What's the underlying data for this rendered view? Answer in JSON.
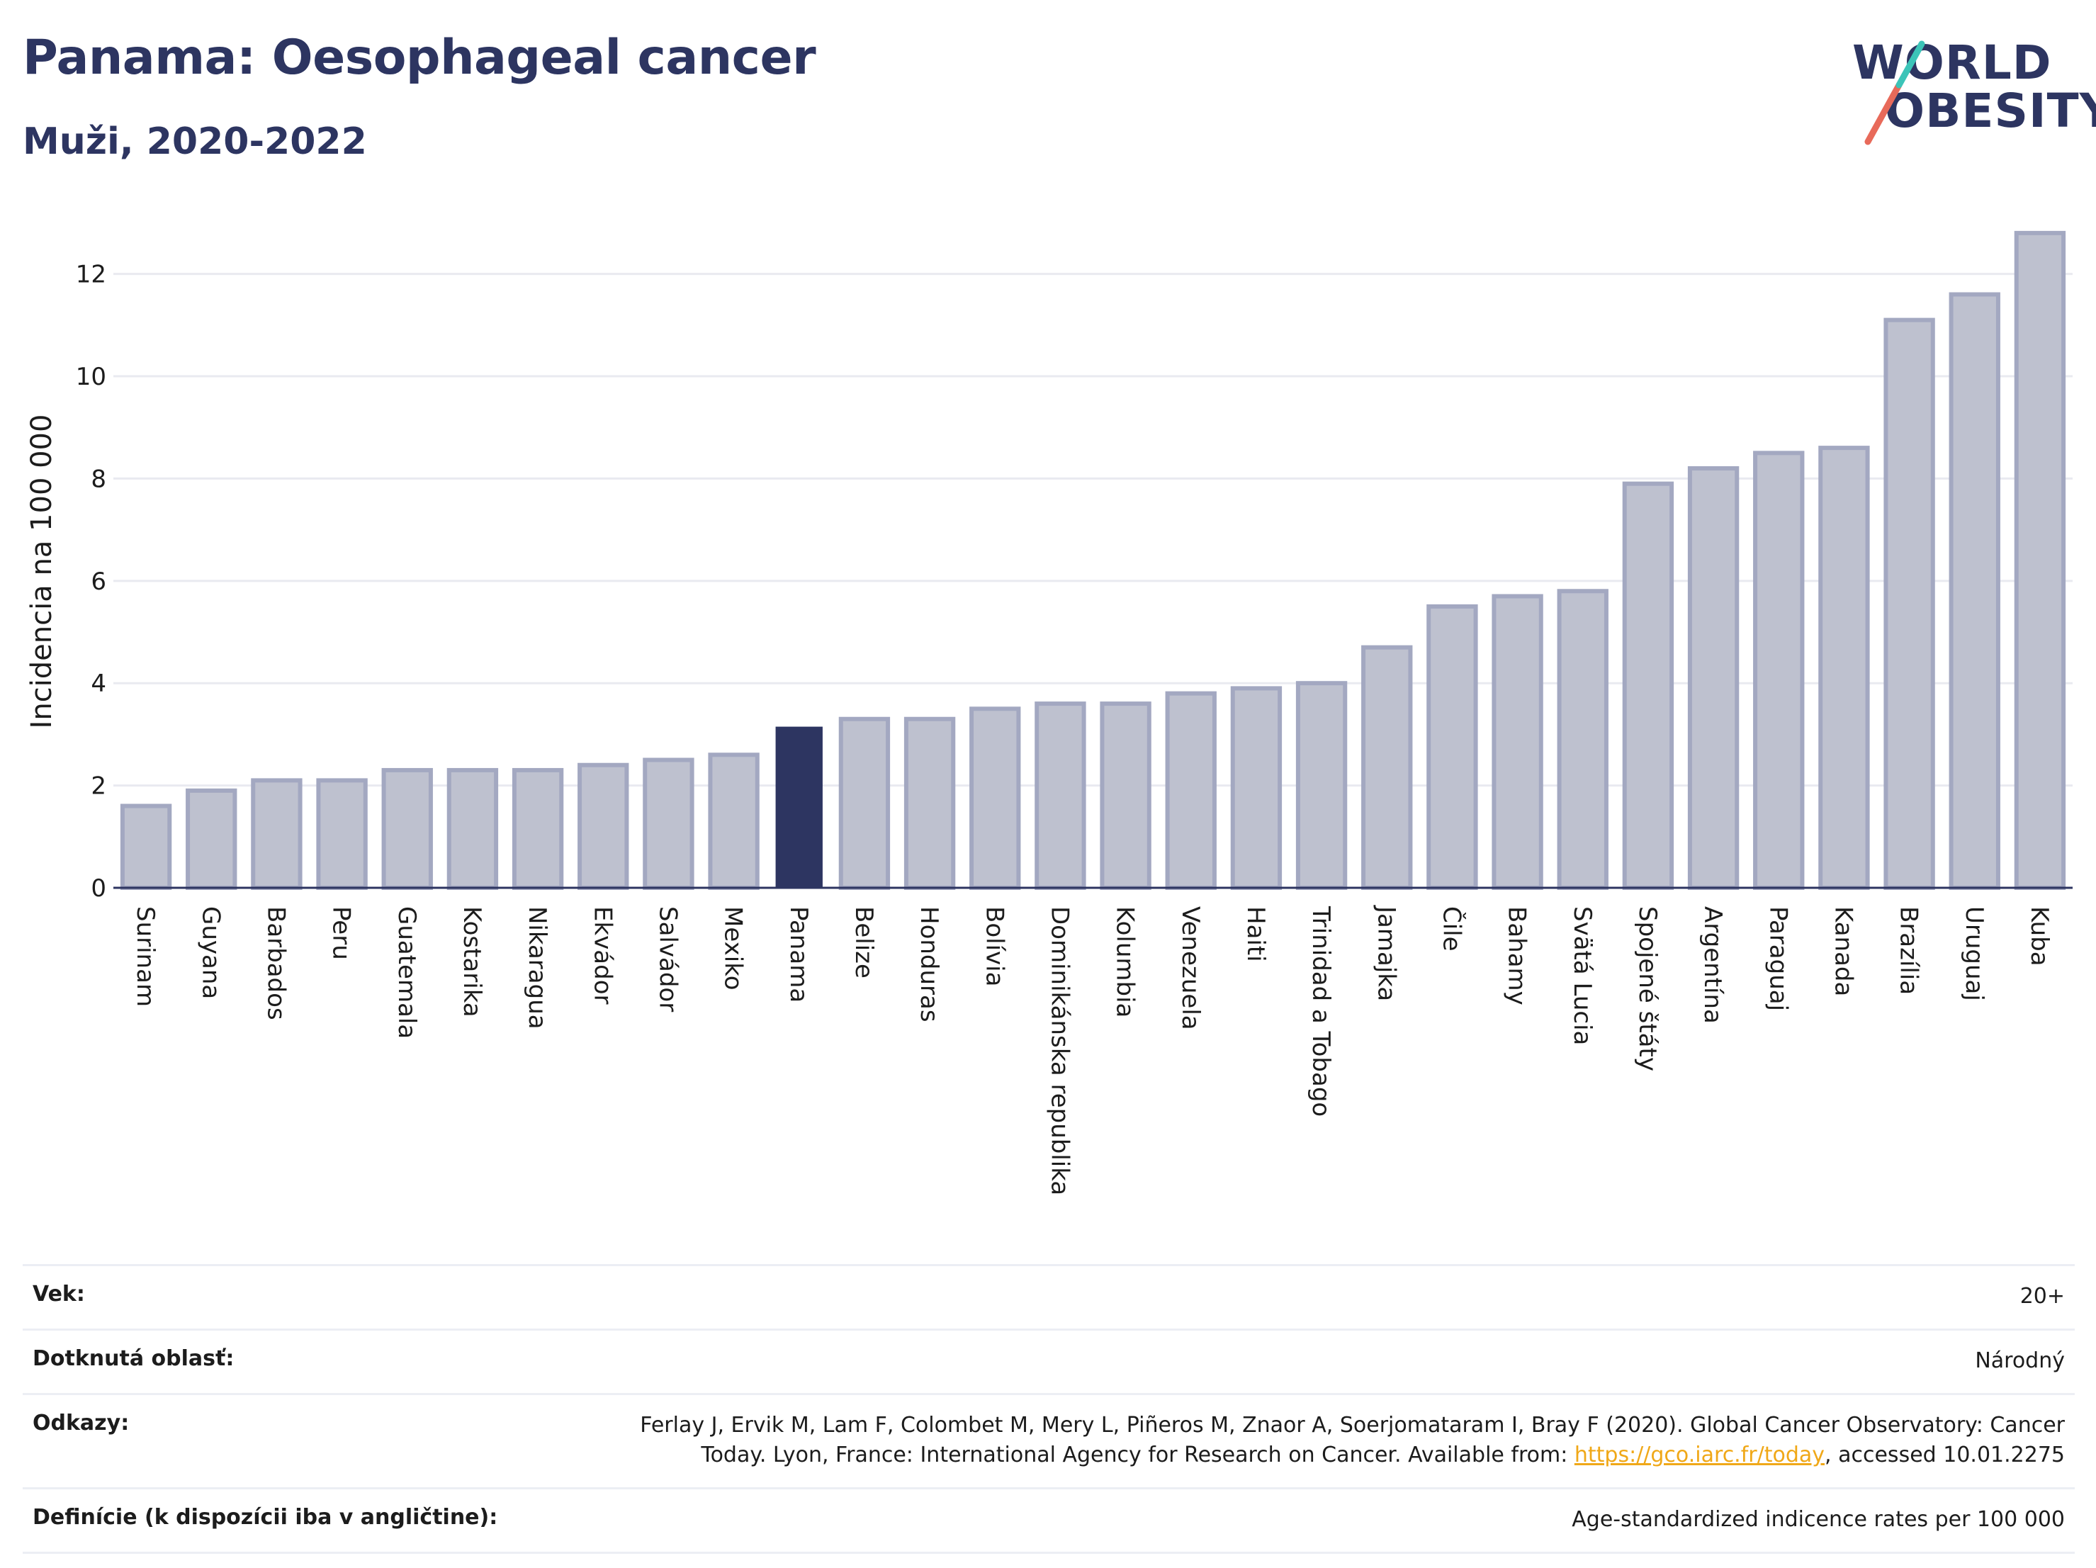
{
  "header": {
    "title": "Panama: Oesophageal cancer",
    "subtitle": "Muži, 2020-2022"
  },
  "logo": {
    "line1": "WORLD",
    "line2": "OBESITY",
    "brand_color": "#2d3561",
    "slash_colors": [
      "#e86a5a",
      "#3cc4b8"
    ]
  },
  "chart_data": {
    "type": "bar",
    "ylabel": "Incidencia na 100 000",
    "xlabel": "",
    "ylim": [
      0,
      13.2
    ],
    "yticks": [
      0,
      2,
      4,
      6,
      8,
      10,
      12
    ],
    "grid": true,
    "highlight": "Panama",
    "colors": {
      "default": "#bec1cf",
      "default_border": "#a3a8c1",
      "highlight": "#2d3561"
    },
    "categories": [
      "Surinam",
      "Guyana",
      "Barbados",
      "Peru",
      "Guatemala",
      "Kostarika",
      "Nikaragua",
      "Ekvádor",
      "Salvádor",
      "Mexiko",
      "Panama",
      "Belize",
      "Honduras",
      "Bolívia",
      "Dominikánska republika",
      "Kolumbia",
      "Venezuela",
      "Haiti",
      "Trinidad a Tobago",
      "Jamajka",
      "Čile",
      "Bahamy",
      "Svätá Lucia",
      "Spojené štáty",
      "Argentína",
      "Paraguaj",
      "Kanada",
      "Brazília",
      "Uruguaj",
      "Kuba"
    ],
    "values": [
      1.6,
      1.9,
      2.1,
      2.1,
      2.3,
      2.3,
      2.3,
      2.4,
      2.5,
      2.6,
      3.15,
      3.3,
      3.3,
      3.5,
      3.6,
      3.6,
      3.8,
      3.9,
      4.0,
      4.7,
      5.5,
      5.7,
      5.8,
      7.9,
      8.2,
      8.5,
      8.6,
      11.1,
      11.6,
      12.8
    ]
  },
  "info": {
    "rows": [
      {
        "label": "Vek:",
        "value": "20+"
      },
      {
        "label": "Dotknutá oblasť:",
        "value": "Národný"
      },
      {
        "label": "Odkazy:",
        "value_pre": "Ferlay J, Ervik M, Lam F, Colombet M, Mery L, Piñeros M, Znaor A, Soerjomataram I, Bray F (2020). Global Cancer Observatory: Cancer Today. Lyon, France: International Agency for Research on Cancer. Available from: ",
        "link": "https://gco.iarc.fr/today",
        "value_post": ", accessed 10.01.2275"
      },
      {
        "label": "Definície (k dispozícii iba v angličtine):",
        "value": "Age-standardized indicence rates per 100 000"
      }
    ]
  }
}
